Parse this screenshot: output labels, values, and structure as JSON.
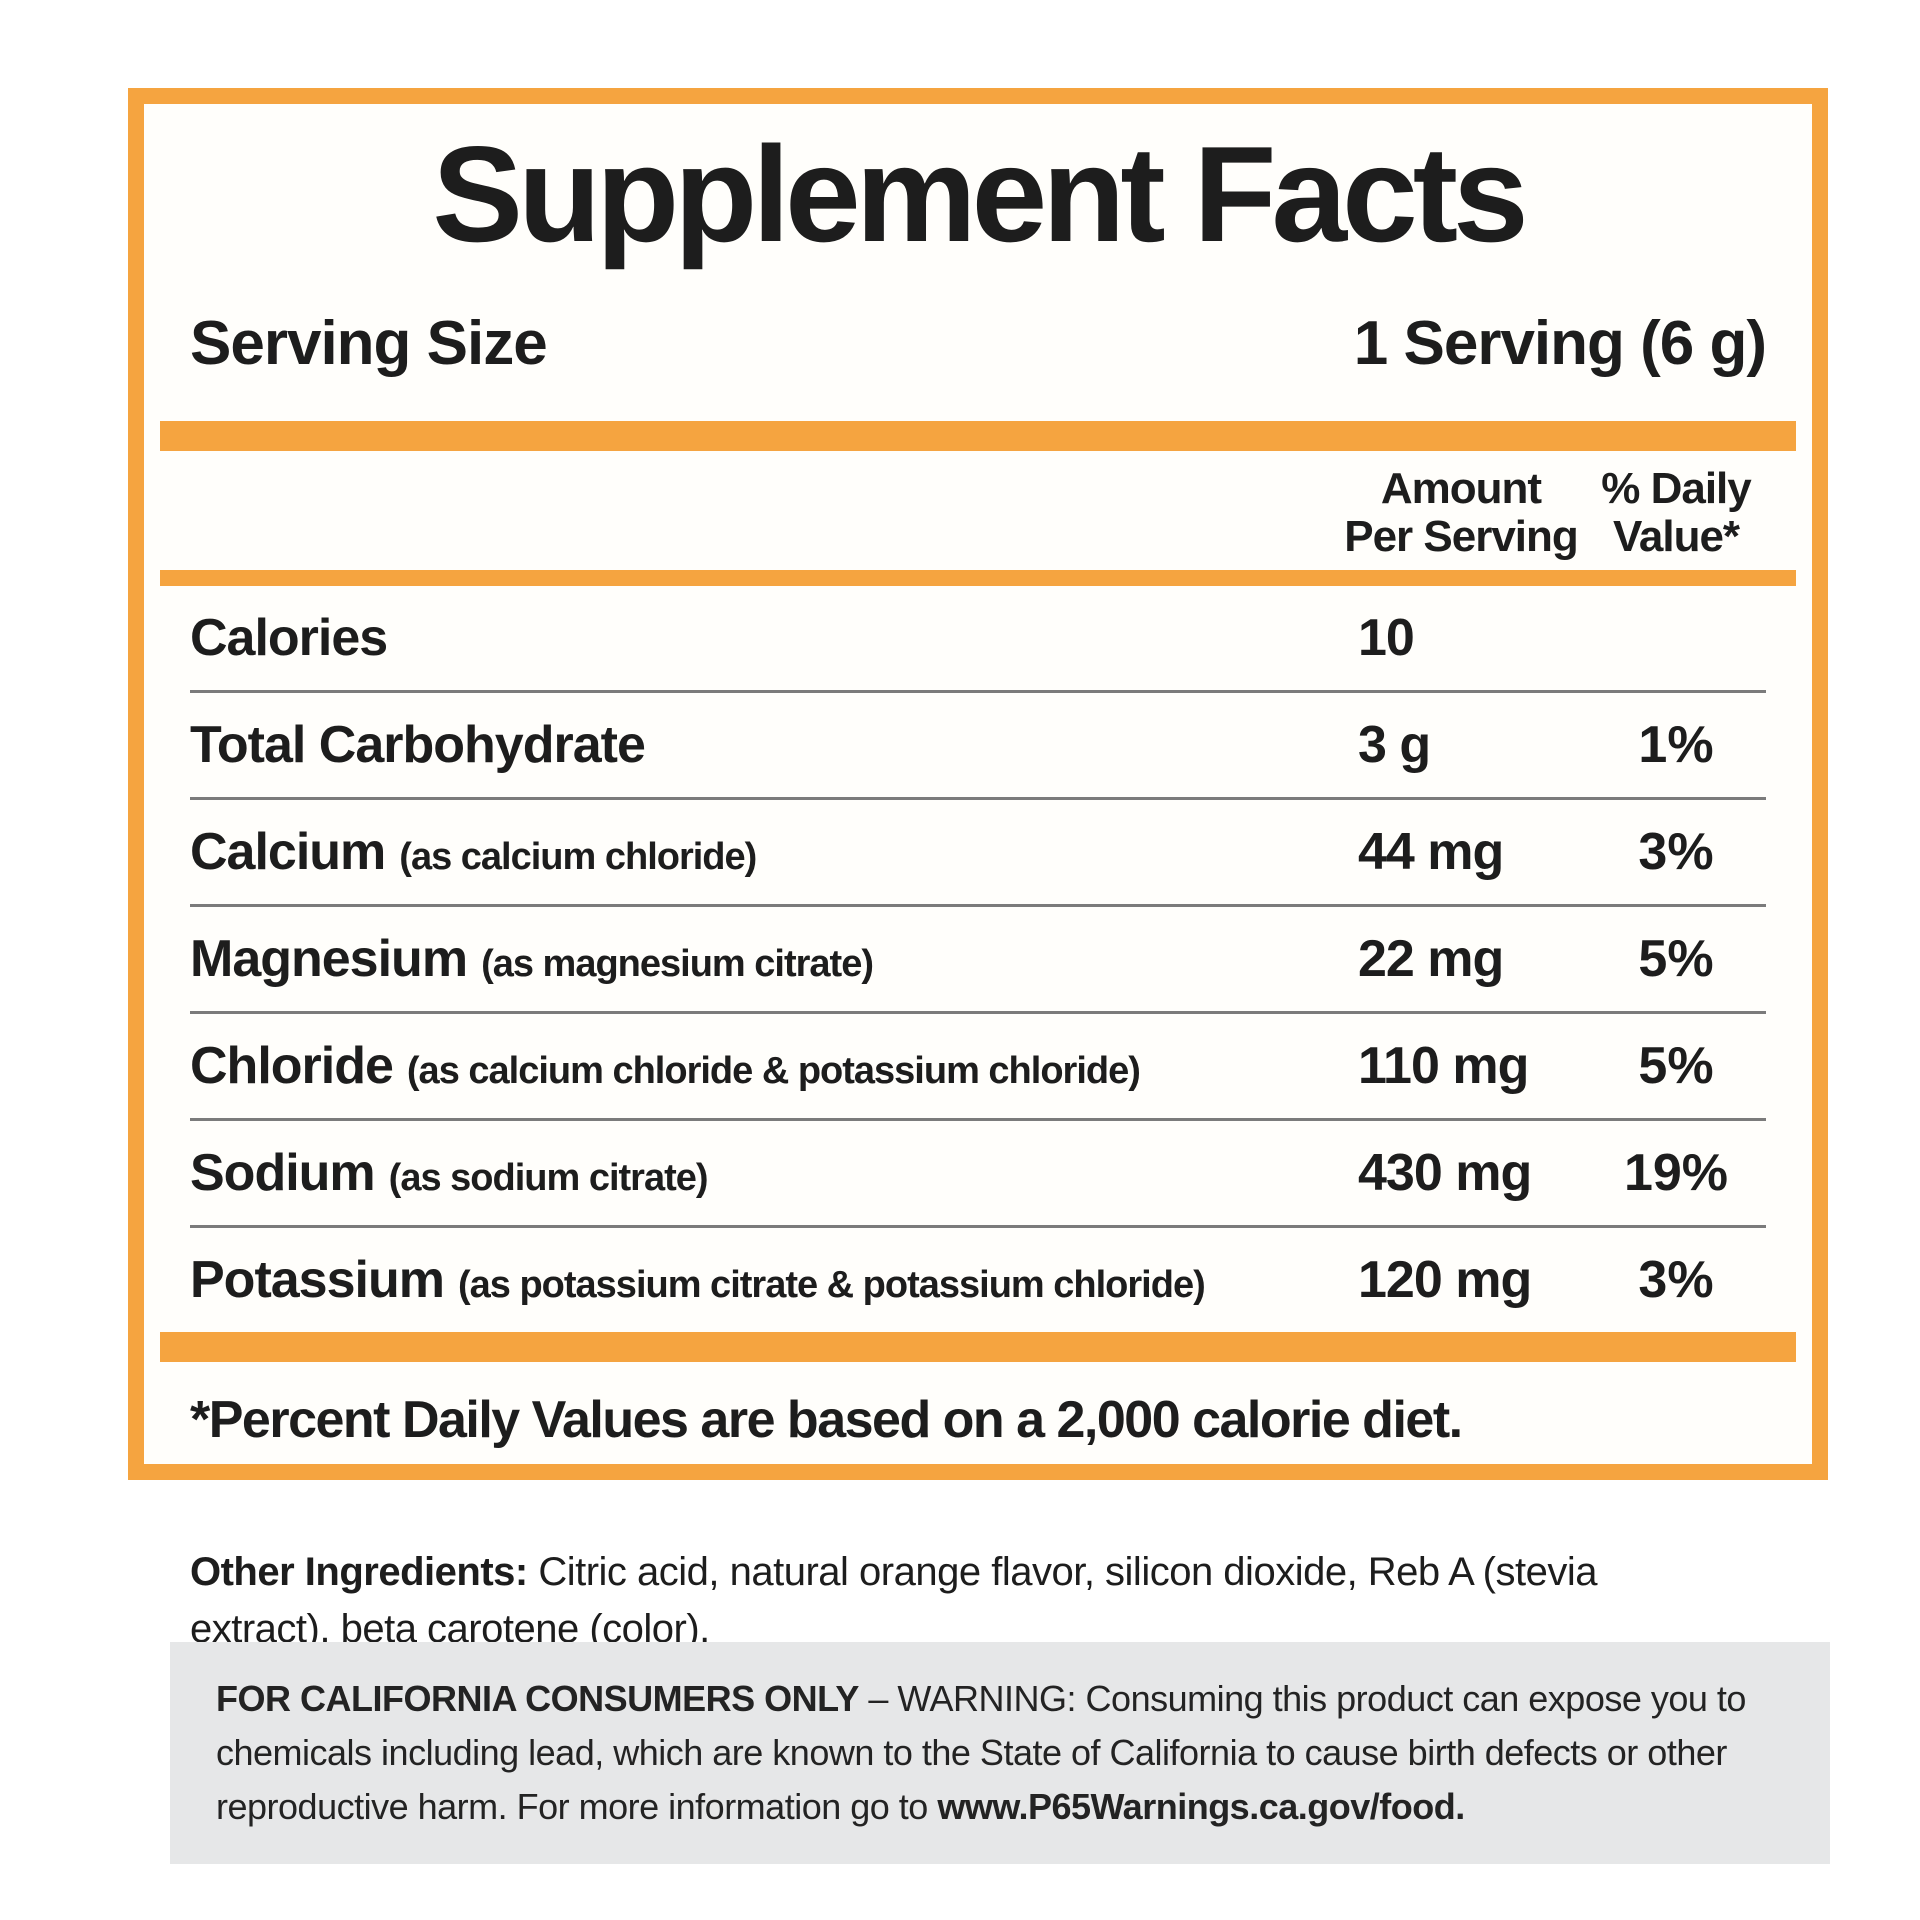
{
  "panel": {
    "title": "Supplement Facts",
    "serving": {
      "label": "Serving Size",
      "value": "1 Serving (6 g)"
    },
    "header": {
      "amount_line1": "Amount",
      "amount_line2": "Per Serving",
      "dv_line1": "% Daily",
      "dv_line2": "Value*"
    },
    "rows": [
      {
        "name": "Calories",
        "detail": "",
        "amount": "10",
        "dv": ""
      },
      {
        "name": "Total Carbohydrate",
        "detail": "",
        "amount": "3 g",
        "dv": "1%"
      },
      {
        "name": "Calcium",
        "detail": "(as calcium chloride)",
        "amount": "44 mg",
        "dv": "3%"
      },
      {
        "name": "Magnesium",
        "detail": "(as magnesium citrate)",
        "amount": "22 mg",
        "dv": "5%"
      },
      {
        "name": "Chloride",
        "detail": "(as calcium chloride & potassium chloride)",
        "amount": "110 mg",
        "dv": "5%"
      },
      {
        "name": "Sodium",
        "detail": "(as sodium citrate)",
        "amount": "430 mg",
        "dv": "19%"
      },
      {
        "name": "Potassium",
        "detail": "(as potassium citrate & potassium chloride)",
        "amount": "120 mg",
        "dv": "3%"
      }
    ],
    "footnote": "*Percent Daily Values are based on a 2,000 calorie diet."
  },
  "other_ingredients": {
    "label": "Other Ingredients:",
    "text": " Citric acid, natural orange flavor, silicon dioxide, Reb A (stevia extract), beta carotene (color)."
  },
  "california_warning": {
    "lead": "FOR CALIFORNIA CONSUMERS ONLY",
    "separator": " – ",
    "body": "WARNING: Consuming this product can expose you to chemicals including lead, which are known to the State of California to cause birth defects or other reproductive harm. For more information go to ",
    "link": "www.P65Warnings.ca.gov/food."
  },
  "colors": {
    "accent_orange": "#F5A440",
    "divider_gray": "#7B7B7B",
    "warning_bg": "#E6E7E8",
    "text": "#1D1D1D"
  }
}
